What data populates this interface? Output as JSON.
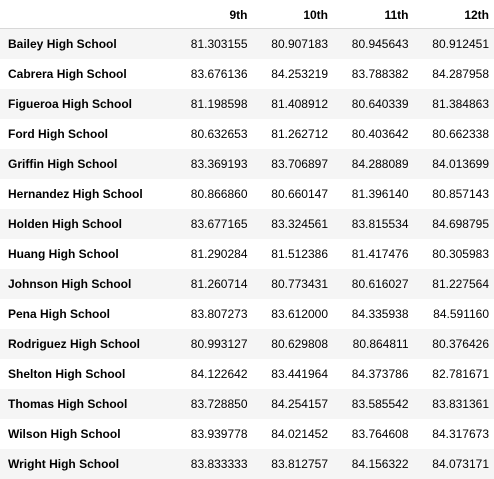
{
  "table": {
    "index_header": "",
    "columns": [
      "9th",
      "10th",
      "11th",
      "12th"
    ],
    "rows": [
      {
        "school": "Bailey High School",
        "values": [
          "81.303155",
          "80.907183",
          "80.945643",
          "80.912451"
        ]
      },
      {
        "school": "Cabrera High School",
        "values": [
          "83.676136",
          "84.253219",
          "83.788382",
          "84.287958"
        ]
      },
      {
        "school": "Figueroa High School",
        "values": [
          "81.198598",
          "81.408912",
          "80.640339",
          "81.384863"
        ]
      },
      {
        "school": "Ford High School",
        "values": [
          "80.632653",
          "81.262712",
          "80.403642",
          "80.662338"
        ]
      },
      {
        "school": "Griffin High School",
        "values": [
          "83.369193",
          "83.706897",
          "84.288089",
          "84.013699"
        ]
      },
      {
        "school": "Hernandez High School",
        "values": [
          "80.866860",
          "80.660147",
          "81.396140",
          "80.857143"
        ]
      },
      {
        "school": "Holden High School",
        "values": [
          "83.677165",
          "83.324561",
          "83.815534",
          "84.698795"
        ]
      },
      {
        "school": "Huang High School",
        "values": [
          "81.290284",
          "81.512386",
          "81.417476",
          "80.305983"
        ]
      },
      {
        "school": "Johnson High School",
        "values": [
          "81.260714",
          "80.773431",
          "80.616027",
          "81.227564"
        ]
      },
      {
        "school": "Pena High School",
        "values": [
          "83.807273",
          "83.612000",
          "84.335938",
          "84.591160"
        ]
      },
      {
        "school": "Rodriguez High School",
        "values": [
          "80.993127",
          "80.629808",
          "80.864811",
          "80.376426"
        ]
      },
      {
        "school": "Shelton High School",
        "values": [
          "84.122642",
          "83.441964",
          "84.373786",
          "82.781671"
        ]
      },
      {
        "school": "Thomas High School",
        "values": [
          "83.728850",
          "84.254157",
          "83.585542",
          "83.831361"
        ]
      },
      {
        "school": "Wilson High School",
        "values": [
          "83.939778",
          "84.021452",
          "83.764608",
          "84.317673"
        ]
      },
      {
        "school": "Wright High School",
        "values": [
          "83.833333",
          "83.812757",
          "84.156322",
          "84.073171"
        ]
      }
    ]
  },
  "colors": {
    "stripe": "#f5f5f5",
    "background": "#ffffff",
    "header_rule": "#d8d8d8"
  }
}
